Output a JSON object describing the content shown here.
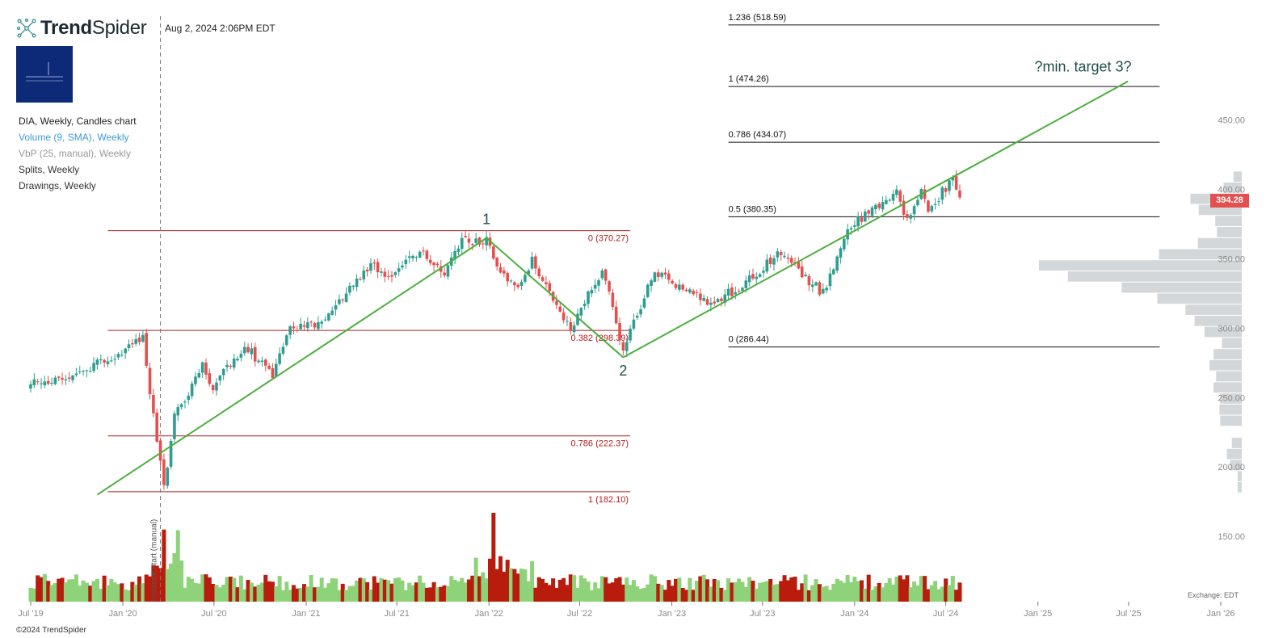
{
  "header": {
    "logo_text_bold": "Trend",
    "logo_text_regular": "Spider",
    "timestamp": "Aug 2, 2024 2:06PM EDT"
  },
  "legend": {
    "main": "DIA, Weekly, Candles chart",
    "volume": "Volume (9, SMA), Weekly",
    "vbp": "VbP (25, manual), Weekly",
    "splits": "Splits, Weekly",
    "drawings": "Drawings, Weekly"
  },
  "footer": {
    "copyright": "©2024 TrendSpider",
    "exchange": "Exchange: EDT"
  },
  "colors": {
    "up": "#2e9e8f",
    "down": "#e4504f",
    "vol_up": "#8ed27a",
    "vol_down": "#b81c0c",
    "trend": "#4caf3f",
    "fib_red": "#b51c1c",
    "fib_black": "#111111",
    "vbp": "#d4d7da"
  },
  "chart_data": {
    "type": "candlestick",
    "x_tick_labels": [
      "Jul '19",
      "Jan '20",
      "Jul '20",
      "Jan '21",
      "Jul '21",
      "Jan '22",
      "Jul '22",
      "Jan '23",
      "Jul '23",
      "Jan '24",
      "Jul '24",
      "Jan '25",
      "Jul '25",
      "Jan '26"
    ],
    "y_tick_labels": [
      "450.00",
      "400.00",
      "350.00",
      "300.00",
      "250.00",
      "200.00",
      "150.00"
    ],
    "y_ticks": [
      450,
      400,
      350,
      300,
      250,
      200,
      150
    ],
    "last_price": 394.28,
    "last_price_label": "394.28",
    "vertical_marker_label": "Instance start (manual)",
    "vertical_marker_date": "2020-03-16",
    "fib_sets": [
      {
        "color": "red",
        "x_start": "2019-12-02",
        "x_end": "2022-10-10",
        "levels": [
          {
            "label": "0 (370.27)",
            "value": 370.27
          },
          {
            "label": "0.382 (298.39)",
            "value": 298.39
          },
          {
            "label": "0.786 (222.37)",
            "value": 222.37
          },
          {
            "label": "1 (182.10)",
            "value": 182.1
          }
        ]
      },
      {
        "color": "black",
        "x_start": "2023-04-24",
        "x_end": "2025-09-01",
        "levels": [
          {
            "label": "1.236 (518.59)",
            "value": 518.59
          },
          {
            "label": "1 (474.26)",
            "value": 474.26
          },
          {
            "label": "0.786 (434.07)",
            "value": 434.07
          },
          {
            "label": "0.5 (380.35)",
            "value": 380.35
          },
          {
            "label": "0 (286.44)",
            "value": 286.44
          }
        ]
      }
    ],
    "trend_lines": [
      {
        "from": {
          "date": "2019-11-11",
          "price": 180
        },
        "to": {
          "date": "2021-12-27",
          "price": 365
        }
      },
      {
        "from": {
          "date": "2021-12-27",
          "price": 365
        },
        "to": {
          "date": "2022-09-26",
          "price": 279
        }
      },
      {
        "from": {
          "date": "2022-09-26",
          "price": 279
        },
        "to": {
          "date": "2025-06-30",
          "price": 478
        }
      }
    ],
    "wave_labels": [
      {
        "text": "1",
        "date": "2021-12-27",
        "price": 375
      },
      {
        "text": "2",
        "date": "2022-09-26",
        "price": 266
      }
    ],
    "annotations": [
      {
        "text": "?min. target 3?",
        "date": "2025-04-01",
        "price": 485
      }
    ],
    "price_path": [
      [
        "2019-07-01",
        262
      ],
      [
        "2019-08-12",
        262
      ],
      [
        "2019-10-01",
        266
      ],
      [
        "2019-12-01",
        278
      ],
      [
        "2020-02-10",
        292
      ],
      [
        "2020-02-24",
        255
      ],
      [
        "2020-03-23",
        185
      ],
      [
        "2020-04-13",
        236
      ],
      [
        "2020-06-08",
        272
      ],
      [
        "2020-06-29",
        258
      ],
      [
        "2020-08-31",
        288
      ],
      [
        "2020-10-26",
        265
      ],
      [
        "2020-11-23",
        298
      ],
      [
        "2021-02-01",
        305
      ],
      [
        "2021-05-10",
        345
      ],
      [
        "2021-06-21",
        338
      ],
      [
        "2021-08-16",
        355
      ],
      [
        "2021-10-04",
        340
      ],
      [
        "2021-11-08",
        363
      ],
      [
        "2021-12-27",
        364
      ],
      [
        "2022-01-24",
        340
      ],
      [
        "2022-03-07",
        330
      ],
      [
        "2022-03-28",
        350
      ],
      [
        "2022-05-16",
        316
      ],
      [
        "2022-06-13",
        300
      ],
      [
        "2022-08-15",
        342
      ],
      [
        "2022-09-26",
        285
      ],
      [
        "2022-11-28",
        342
      ],
      [
        "2023-03-13",
        318
      ],
      [
        "2023-05-22",
        330
      ],
      [
        "2023-08-01",
        355
      ],
      [
        "2023-10-30",
        325
      ],
      [
        "2023-12-18",
        372
      ],
      [
        "2024-03-25",
        397
      ],
      [
        "2024-04-15",
        378
      ],
      [
        "2024-05-13",
        398
      ],
      [
        "2024-05-27",
        385
      ],
      [
        "2024-07-15",
        408
      ],
      [
        "2024-08-02",
        394.28
      ]
    ],
    "vbp_bins": [
      {
        "low": 405,
        "high": 413,
        "rel": 0.1
      },
      {
        "low": 397,
        "high": 405,
        "rel": 0.22
      },
      {
        "low": 389,
        "high": 397,
        "rel": 0.62
      },
      {
        "low": 381,
        "high": 389,
        "rel": 0.52
      },
      {
        "low": 373,
        "high": 381,
        "rel": 0.32
      },
      {
        "low": 365,
        "high": 373,
        "rel": 0.3
      },
      {
        "low": 357,
        "high": 365,
        "rel": 0.53
      },
      {
        "low": 349,
        "high": 357,
        "rel": 1.0
      },
      {
        "low": 341,
        "high": 349,
        "rel": 2.45
      },
      {
        "low": 333,
        "high": 341,
        "rel": 2.1
      },
      {
        "low": 325,
        "high": 333,
        "rel": 1.45
      },
      {
        "low": 317,
        "high": 325,
        "rel": 1.02
      },
      {
        "low": 309,
        "high": 317,
        "rel": 0.68
      },
      {
        "low": 301,
        "high": 309,
        "rel": 0.57
      },
      {
        "low": 293,
        "high": 301,
        "rel": 0.45
      },
      {
        "low": 285,
        "high": 293,
        "rel": 0.24
      },
      {
        "low": 277,
        "high": 285,
        "rel": 0.34
      },
      {
        "low": 269,
        "high": 277,
        "rel": 0.39
      },
      {
        "low": 261,
        "high": 269,
        "rel": 0.31
      },
      {
        "low": 253,
        "high": 261,
        "rel": 0.34
      },
      {
        "low": 245,
        "high": 253,
        "rel": 0.26
      },
      {
        "low": 237,
        "high": 245,
        "rel": 0.27
      },
      {
        "low": 229,
        "high": 237,
        "rel": 0.26
      },
      {
        "low": 221,
        "high": 237,
        "rel": 0.0
      },
      {
        "low": 213,
        "high": 221,
        "rel": 0.12
      },
      {
        "low": 205,
        "high": 213,
        "rel": 0.18
      },
      {
        "low": 197,
        "high": 205,
        "rel": 0.14
      },
      {
        "low": 189,
        "high": 197,
        "rel": 0.05
      },
      {
        "low": 181,
        "high": 189,
        "rel": 0.05
      }
    ]
  }
}
